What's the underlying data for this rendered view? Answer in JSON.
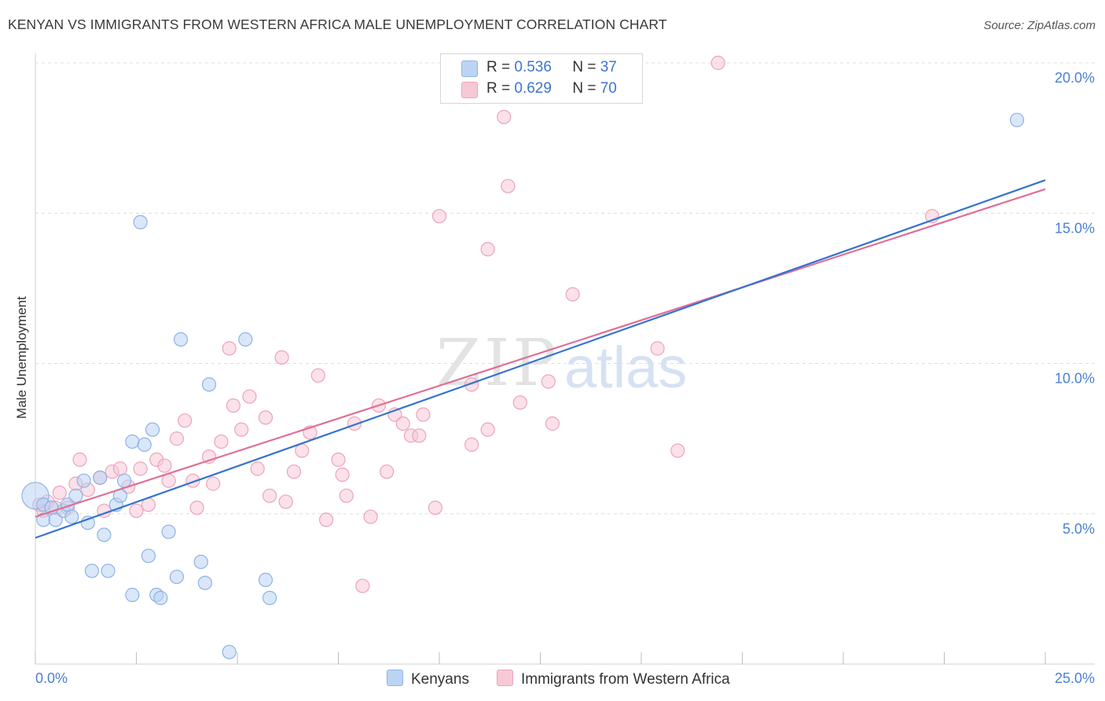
{
  "title": "KENYAN VS IMMIGRANTS FROM WESTERN AFRICA MALE UNEMPLOYMENT CORRELATION CHART",
  "source": "Source: ZipAtlas.com",
  "watermark": {
    "zip": "ZIP",
    "atlas": "atlas"
  },
  "legend": {
    "kenyans": {
      "r_label": "R =",
      "r_value": "0.536",
      "n_label": "N =",
      "n_value": "37"
    },
    "immigrants": {
      "r_label": "R =",
      "r_value": "0.629",
      "n_label": "N =",
      "n_value": "70"
    }
  },
  "bottom_legend": {
    "kenyans": "Kenyans",
    "immigrants": "Immigrants from Western Africa"
  },
  "colors": {
    "kenyans_fill": "#bcd4f3",
    "kenyans_stroke": "#8db3e6",
    "kenyans_line": "#3473d0",
    "immigrants_fill": "#f7c9d7",
    "immigrants_stroke": "#eba4ba",
    "immigrants_line": "#e06f95",
    "axis_label": "#4a7fd4",
    "grid": "#dcdcdc"
  },
  "chart_data": {
    "type": "scatter",
    "title": "KENYAN VS IMMIGRANTS FROM WESTERN AFRICA MALE UNEMPLOYMENT CORRELATION CHART",
    "xlabel": "",
    "ylabel": "Male Unemployment",
    "xlim": [
      0,
      25
    ],
    "ylim": [
      0,
      20.5
    ],
    "x_tick_labels": [
      "0.0%",
      "25.0%"
    ],
    "y_ticks": [
      5,
      10,
      15,
      20
    ],
    "y_tick_labels": [
      "5.0%",
      "10.0%",
      "15.0%",
      "20.0%"
    ],
    "series": [
      {
        "name": "Kenyans",
        "r": 0.536,
        "n": 37,
        "trend": {
          "x": [
            0,
            25
          ],
          "y": [
            4.2,
            16.1
          ]
        },
        "points": [
          {
            "x": 0.0,
            "y": 5.6,
            "big": true
          },
          {
            "x": 0.2,
            "y": 5.3
          },
          {
            "x": 0.2,
            "y": 4.8
          },
          {
            "x": 0.4,
            "y": 5.2
          },
          {
            "x": 0.5,
            "y": 4.8
          },
          {
            "x": 0.7,
            "y": 5.1
          },
          {
            "x": 0.8,
            "y": 5.3
          },
          {
            "x": 0.9,
            "y": 4.9
          },
          {
            "x": 1.0,
            "y": 5.6
          },
          {
            "x": 1.2,
            "y": 6.1
          },
          {
            "x": 1.3,
            "y": 4.7
          },
          {
            "x": 1.4,
            "y": 3.1
          },
          {
            "x": 1.6,
            "y": 6.2
          },
          {
            "x": 1.7,
            "y": 4.3
          },
          {
            "x": 1.8,
            "y": 3.1
          },
          {
            "x": 2.0,
            "y": 5.3
          },
          {
            "x": 2.1,
            "y": 5.6
          },
          {
            "x": 2.2,
            "y": 6.1
          },
          {
            "x": 2.4,
            "y": 7.4
          },
          {
            "x": 2.4,
            "y": 2.3
          },
          {
            "x": 2.6,
            "y": 14.7
          },
          {
            "x": 2.7,
            "y": 7.3
          },
          {
            "x": 2.8,
            "y": 3.6
          },
          {
            "x": 2.9,
            "y": 7.8
          },
          {
            "x": 3.0,
            "y": 2.3
          },
          {
            "x": 3.1,
            "y": 2.2
          },
          {
            "x": 3.3,
            "y": 4.4
          },
          {
            "x": 3.5,
            "y": 2.9
          },
          {
            "x": 3.6,
            "y": 10.8
          },
          {
            "x": 4.1,
            "y": 3.4
          },
          {
            "x": 4.2,
            "y": 2.7
          },
          {
            "x": 4.3,
            "y": 9.3
          },
          {
            "x": 4.8,
            "y": 0.4
          },
          {
            "x": 5.2,
            "y": 10.8
          },
          {
            "x": 5.7,
            "y": 2.8
          },
          {
            "x": 5.8,
            "y": 2.2
          },
          {
            "x": 24.3,
            "y": 18.1
          }
        ]
      },
      {
        "name": "Immigrants from Western Africa",
        "r": 0.629,
        "n": 70,
        "trend": {
          "x": [
            0,
            25
          ],
          "y": [
            4.9,
            15.8
          ]
        },
        "points": [
          {
            "x": 0.1,
            "y": 5.3
          },
          {
            "x": 0.2,
            "y": 5.1
          },
          {
            "x": 0.3,
            "y": 5.4
          },
          {
            "x": 0.5,
            "y": 5.2
          },
          {
            "x": 0.6,
            "y": 5.7
          },
          {
            "x": 0.8,
            "y": 5.2
          },
          {
            "x": 1.0,
            "y": 6.0
          },
          {
            "x": 1.1,
            "y": 6.8
          },
          {
            "x": 1.3,
            "y": 5.8
          },
          {
            "x": 1.6,
            "y": 6.2
          },
          {
            "x": 1.7,
            "y": 5.1
          },
          {
            "x": 1.9,
            "y": 6.4
          },
          {
            "x": 2.1,
            "y": 6.5
          },
          {
            "x": 2.3,
            "y": 5.9
          },
          {
            "x": 2.5,
            "y": 5.1
          },
          {
            "x": 2.6,
            "y": 6.5
          },
          {
            "x": 2.8,
            "y": 5.3
          },
          {
            "x": 3.0,
            "y": 6.8
          },
          {
            "x": 3.2,
            "y": 6.6
          },
          {
            "x": 3.3,
            "y": 6.1
          },
          {
            "x": 3.5,
            "y": 7.5
          },
          {
            "x": 3.7,
            "y": 8.1
          },
          {
            "x": 3.9,
            "y": 6.1
          },
          {
            "x": 4.0,
            "y": 5.2
          },
          {
            "x": 4.3,
            "y": 6.9
          },
          {
            "x": 4.4,
            "y": 6.0
          },
          {
            "x": 4.6,
            "y": 7.4
          },
          {
            "x": 4.8,
            "y": 10.5
          },
          {
            "x": 4.9,
            "y": 8.6
          },
          {
            "x": 5.1,
            "y": 7.8
          },
          {
            "x": 5.3,
            "y": 8.9
          },
          {
            "x": 5.5,
            "y": 6.5
          },
          {
            "x": 5.7,
            "y": 8.2
          },
          {
            "x": 5.8,
            "y": 5.6
          },
          {
            "x": 6.1,
            "y": 10.2
          },
          {
            "x": 6.2,
            "y": 5.4
          },
          {
            "x": 6.4,
            "y": 6.4
          },
          {
            "x": 6.6,
            "y": 7.1
          },
          {
            "x": 6.8,
            "y": 7.7
          },
          {
            "x": 7.0,
            "y": 9.6
          },
          {
            "x": 7.2,
            "y": 4.8
          },
          {
            "x": 7.5,
            "y": 6.8
          },
          {
            "x": 7.6,
            "y": 6.3
          },
          {
            "x": 7.7,
            "y": 5.6
          },
          {
            "x": 7.9,
            "y": 8.0
          },
          {
            "x": 8.1,
            "y": 2.6
          },
          {
            "x": 8.3,
            "y": 4.9
          },
          {
            "x": 8.5,
            "y": 8.6
          },
          {
            "x": 8.7,
            "y": 6.4
          },
          {
            "x": 8.9,
            "y": 8.3
          },
          {
            "x": 9.1,
            "y": 8.0
          },
          {
            "x": 9.3,
            "y": 7.6
          },
          {
            "x": 9.5,
            "y": 7.6
          },
          {
            "x": 9.6,
            "y": 8.3
          },
          {
            "x": 9.9,
            "y": 5.2
          },
          {
            "x": 10.0,
            "y": 14.9
          },
          {
            "x": 10.8,
            "y": 7.3
          },
          {
            "x": 10.8,
            "y": 9.3
          },
          {
            "x": 11.2,
            "y": 7.8
          },
          {
            "x": 11.2,
            "y": 13.8
          },
          {
            "x": 11.6,
            "y": 18.2
          },
          {
            "x": 11.7,
            "y": 15.9
          },
          {
            "x": 12.0,
            "y": 8.7
          },
          {
            "x": 12.7,
            "y": 9.4
          },
          {
            "x": 12.8,
            "y": 8.0
          },
          {
            "x": 13.3,
            "y": 12.3
          },
          {
            "x": 15.4,
            "y": 10.5
          },
          {
            "x": 15.9,
            "y": 7.1
          },
          {
            "x": 16.9,
            "y": 20.0
          },
          {
            "x": 22.2,
            "y": 14.9
          }
        ]
      }
    ]
  }
}
